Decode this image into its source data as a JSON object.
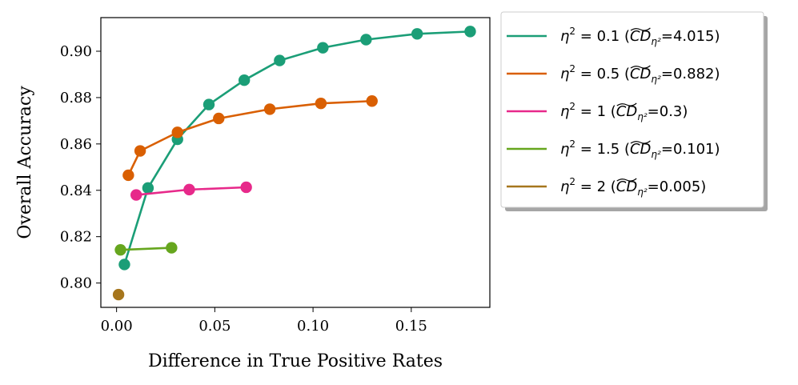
{
  "chart_data": {
    "type": "line",
    "title": "",
    "xlabel": "Difference in True Positive Rates",
    "ylabel": "Overall Accuracy",
    "xlim": [
      -0.008,
      0.19
    ],
    "ylim": [
      0.7895,
      0.9145
    ],
    "xticks": [
      0.0,
      0.05,
      0.1,
      0.15
    ],
    "xtick_labels": [
      "0.00",
      "0.05",
      "0.10",
      "0.15"
    ],
    "yticks": [
      0.8,
      0.82,
      0.84,
      0.86,
      0.88,
      0.9
    ],
    "ytick_labels": [
      "0.80",
      "0.82",
      "0.84",
      "0.86",
      "0.88",
      "0.90"
    ],
    "grid": false,
    "legend_position": "outside-right-top",
    "series": [
      {
        "name": "η² = 0.1 (CD̃η²=4.015)",
        "eta_label": "0.1",
        "cd_value": "4.015",
        "color": "#1b9e77",
        "x": [
          0.004,
          0.016,
          0.031,
          0.047,
          0.065,
          0.083,
          0.105,
          0.127,
          0.153,
          0.18
        ],
        "y": [
          0.808,
          0.841,
          0.862,
          0.877,
          0.8875,
          0.896,
          0.9015,
          0.905,
          0.9075,
          0.9085
        ]
      },
      {
        "name": "η² = 0.5 (CD̃η²=0.882)",
        "eta_label": "0.5",
        "cd_value": "0.882",
        "color": "#d95f02",
        "x": [
          0.006,
          0.012,
          0.031,
          0.052,
          0.078,
          0.104,
          0.13
        ],
        "y": [
          0.8465,
          0.857,
          0.865,
          0.871,
          0.875,
          0.8775,
          0.8785
        ]
      },
      {
        "name": "η² = 1 (CD̃η²=0.3)",
        "eta_label": "1",
        "cd_value": "0.3",
        "color": "#e7298a",
        "x": [
          0.01,
          0.037,
          0.066
        ],
        "y": [
          0.838,
          0.8403,
          0.8413
        ]
      },
      {
        "name": "η² = 1.5 (CD̃η²=0.101)",
        "eta_label": "1.5",
        "cd_value": "0.101",
        "color": "#66a61e",
        "x": [
          0.002,
          0.028
        ],
        "y": [
          0.8143,
          0.8152
        ]
      },
      {
        "name": "η² = 2 (CD̃η²=0.005)",
        "eta_label": "2",
        "cd_value": "0.005",
        "color": "#a6761d",
        "x": [
          0.001
        ],
        "y": [
          0.795
        ]
      }
    ]
  }
}
